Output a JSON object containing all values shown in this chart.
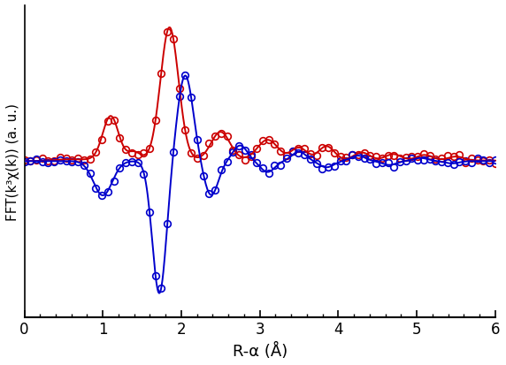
{
  "title": "",
  "xlabel": "R-α (Å)",
  "ylabel": "FFT(k³χ(k)) (a. u.)",
  "xlim": [
    0,
    6
  ],
  "background_color": "#ffffff",
  "red_color": "#cc0000",
  "blue_color": "#0000cc",
  "figsize": [
    5.72,
    4.14
  ],
  "dpi": 100
}
